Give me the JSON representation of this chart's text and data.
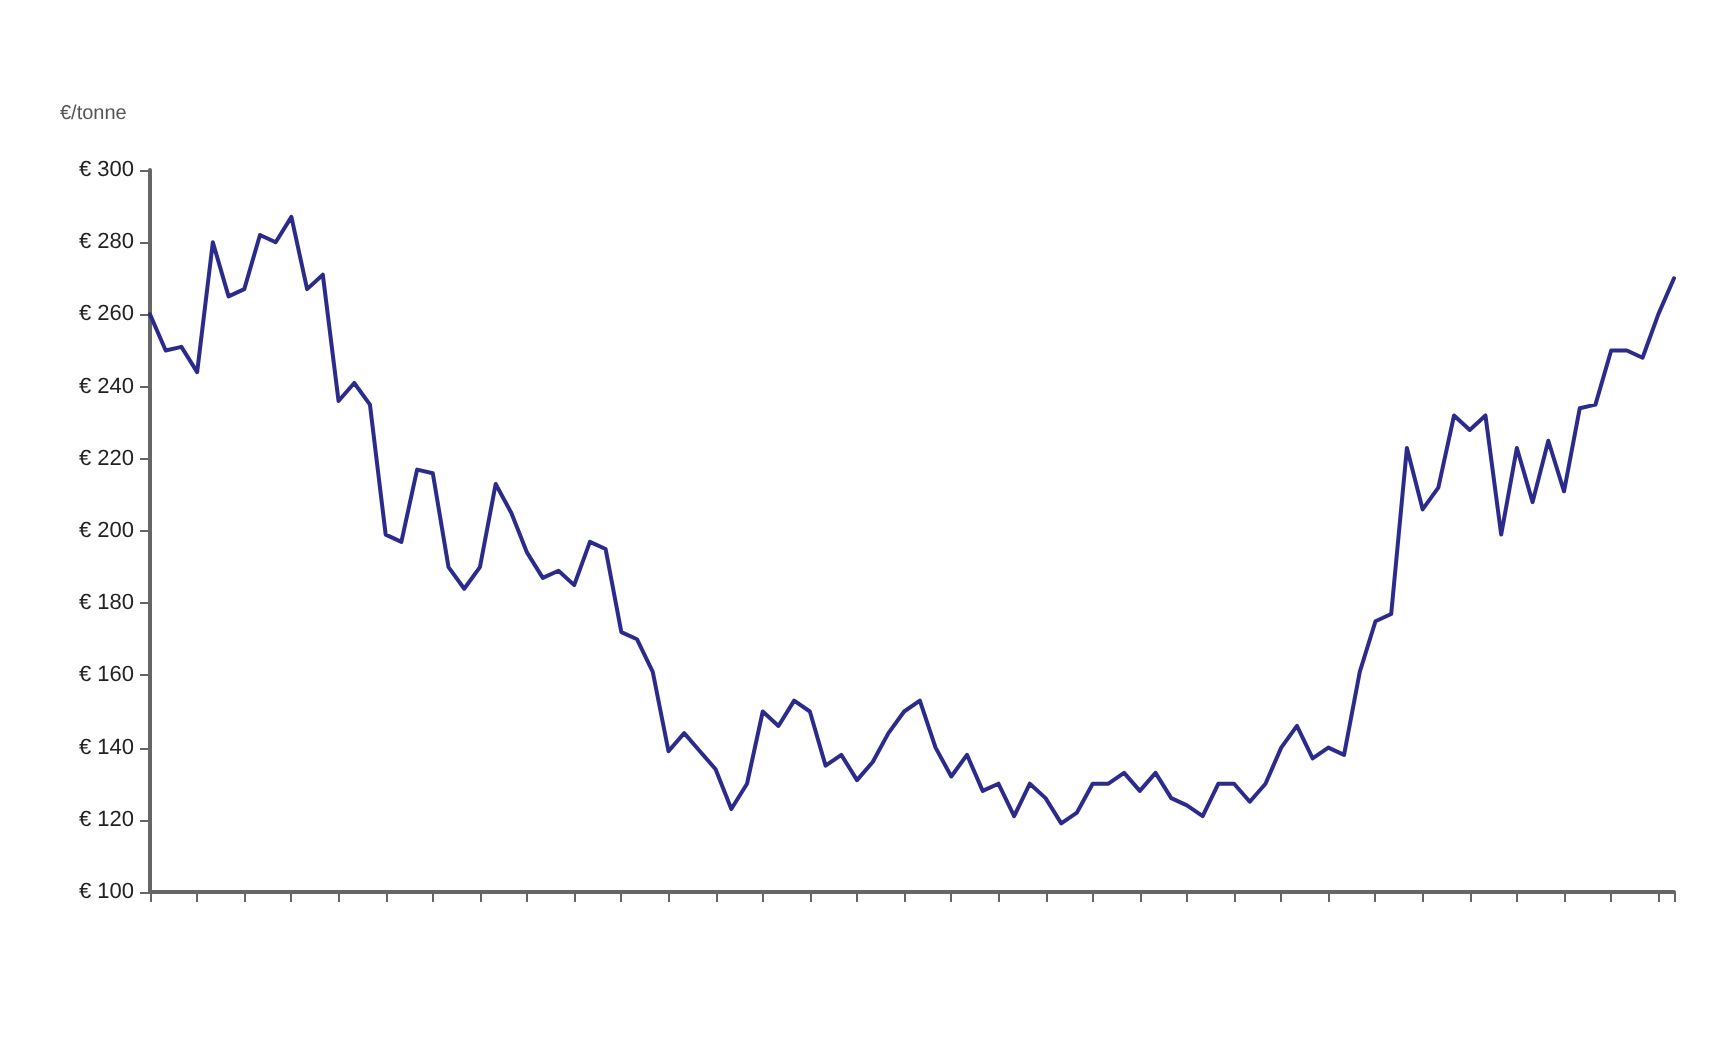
{
  "chart_data": {
    "type": "line",
    "ylabel": "€/tonne",
    "categories": [
      null,
      null,
      null,
      null,
      null,
      null,
      null,
      null,
      null,
      null,
      null,
      null,
      null,
      null,
      null,
      null,
      null,
      null,
      null,
      null,
      null,
      null,
      null,
      null,
      null,
      null,
      null,
      null,
      null,
      null,
      null,
      null,
      null,
      null,
      null,
      null,
      null,
      null,
      null,
      null,
      null,
      null,
      null,
      null,
      null,
      null,
      null,
      null,
      null,
      null,
      null,
      null,
      null,
      null,
      null,
      null,
      null,
      null,
      null,
      null,
      null,
      null,
      null,
      null,
      null,
      null,
      null,
      null,
      null,
      null,
      null,
      null,
      null,
      null,
      null,
      null,
      null,
      null,
      null,
      null,
      null,
      null,
      null,
      null,
      null,
      null,
      null,
      null,
      null,
      null,
      null,
      null,
      null,
      null,
      null,
      null,
      null,
      null
    ],
    "series": [
      {
        "color": "#2b2b8c",
        "values": [
          260,
          250,
          251,
          244,
          280,
          265,
          267,
          282,
          280,
          287,
          267,
          271,
          236,
          241,
          235,
          199,
          197,
          217,
          216,
          190,
          184,
          190,
          213,
          205,
          194,
          187,
          189,
          185,
          197,
          195,
          172,
          170,
          161,
          139,
          144,
          139,
          134,
          123,
          130,
          150,
          146,
          153,
          150,
          135,
          138,
          131,
          136,
          144,
          150,
          153,
          140,
          132,
          138,
          128,
          130,
          121,
          130,
          126,
          119,
          122,
          130,
          130,
          133,
          128,
          133,
          126,
          124,
          121,
          130,
          130,
          125,
          130,
          140,
          146,
          137,
          140,
          138,
          161,
          175,
          177,
          223,
          206,
          212,
          232,
          228,
          232,
          199,
          223,
          208,
          225,
          211,
          234,
          235,
          250,
          250,
          248,
          260,
          270
        ]
      }
    ],
    "ylim": [
      100,
      300
    ],
    "yticks": [
      {
        "value": 100,
        "label": "€ 100"
      },
      {
        "value": 120,
        "label": "€ 120"
      },
      {
        "value": 140,
        "label": "€ 140"
      },
      {
        "value": 160,
        "label": "€ 160"
      },
      {
        "value": 180,
        "label": "€ 180"
      },
      {
        "value": 200,
        "label": "€ 200"
      },
      {
        "value": 220,
        "label": "€ 220"
      },
      {
        "value": 240,
        "label": "€ 240"
      },
      {
        "value": 260,
        "label": "€ 260"
      },
      {
        "value": 280,
        "label": "€ 280"
      },
      {
        "value": 300,
        "label": "€ 300"
      }
    ],
    "grid": false,
    "marker": "none",
    "line_style": "solid"
  }
}
